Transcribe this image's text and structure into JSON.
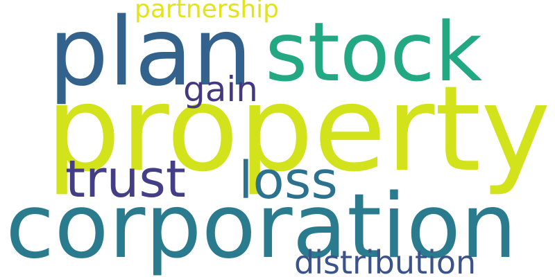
{
  "cloud": {
    "words": [
      {
        "text": "property",
        "color": "#d2e21b"
      },
      {
        "text": "corporation",
        "color": "#2a7b8e"
      },
      {
        "text": "plan",
        "color": "#33638d"
      },
      {
        "text": "stock",
        "color": "#23a884"
      },
      {
        "text": "trust",
        "color": "#433e85"
      },
      {
        "text": "loss",
        "color": "#2c728e"
      },
      {
        "text": "gain",
        "color": "#453882"
      },
      {
        "text": "distribution",
        "color": "#3b528b"
      },
      {
        "text": "partnership",
        "color": "#e3e418"
      }
    ]
  }
}
